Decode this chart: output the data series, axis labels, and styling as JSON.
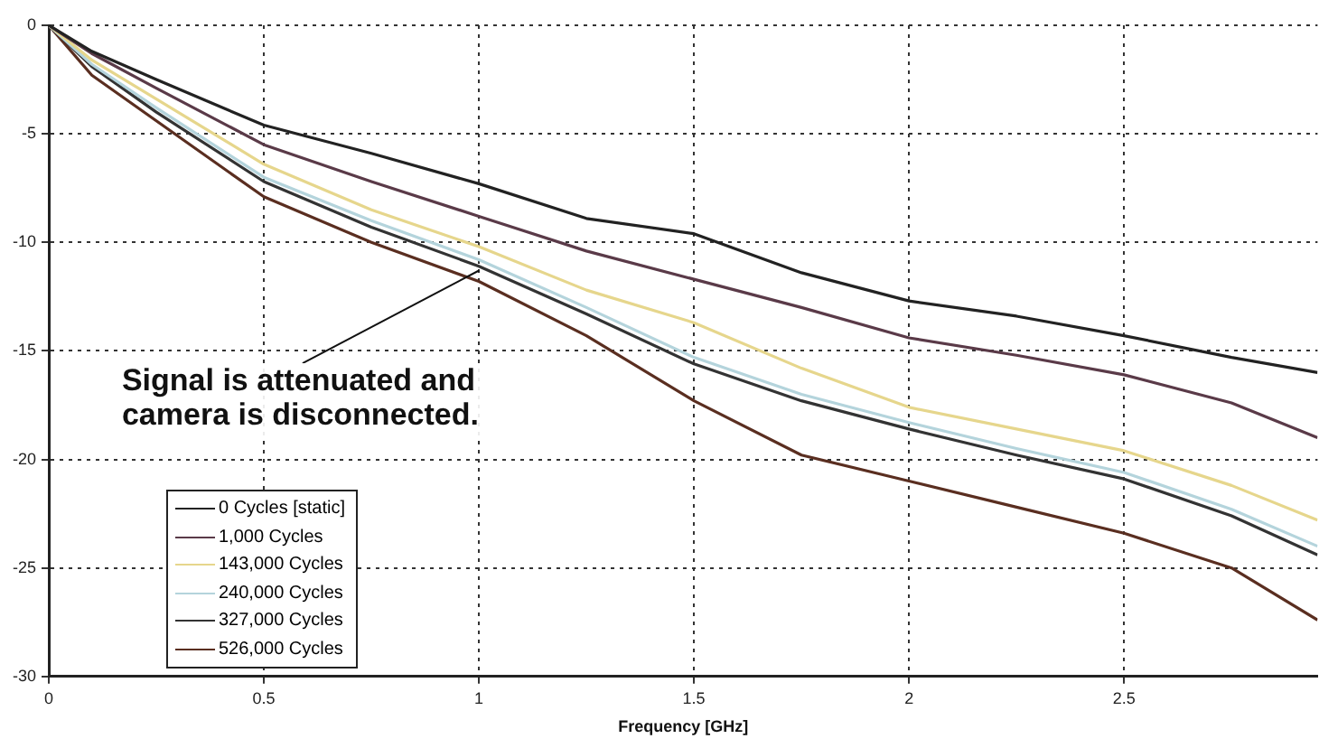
{
  "chart_data": {
    "type": "line",
    "xlabel": "Frequency [GHz]",
    "x": [
      0,
      0.1,
      0.25,
      0.5,
      0.75,
      1,
      1.25,
      1.5,
      1.75,
      2,
      2.25,
      2.5,
      2.75,
      2.95
    ],
    "series": [
      {
        "name": "0 Cycles [static]",
        "color": "#222222",
        "values": [
          0,
          -1.2,
          -2.5,
          -4.6,
          -5.9,
          -7.3,
          -8.9,
          -9.6,
          -11.4,
          -12.7,
          -13.4,
          -14.3,
          -15.3,
          -16.0
        ]
      },
      {
        "name": "1,000 Cycles",
        "color": "#5a3a48",
        "values": [
          0,
          -1.3,
          -2.9,
          -5.5,
          -7.2,
          -8.8,
          -10.4,
          -11.7,
          -13.0,
          -14.4,
          -15.2,
          -16.1,
          -17.4,
          -19.0
        ]
      },
      {
        "name": "143,000 Cycles",
        "color": "#e6d68c",
        "values": [
          0,
          -1.6,
          -3.4,
          -6.4,
          -8.5,
          -10.2,
          -12.2,
          -13.7,
          -15.8,
          -17.6,
          -18.6,
          -19.6,
          -21.2,
          -22.8
        ]
      },
      {
        "name": "240,000 Cycles",
        "color": "#b4d4dc",
        "values": [
          0,
          -1.8,
          -3.8,
          -7.0,
          -9.0,
          -10.8,
          -13.0,
          -15.3,
          -17.0,
          -18.3,
          -19.5,
          -20.6,
          -22.3,
          -24.0
        ]
      },
      {
        "name": "327,000 Cycles",
        "color": "#333333",
        "values": [
          0,
          -1.9,
          -4.0,
          -7.2,
          -9.3,
          -11.1,
          -13.3,
          -15.6,
          -17.3,
          -18.6,
          -19.8,
          -20.9,
          -22.6,
          -24.4
        ]
      },
      {
        "name": "526,000 Cycles",
        "color": "#5a2e20",
        "values": [
          0,
          -2.3,
          -4.4,
          -7.9,
          -10.0,
          -11.8,
          -14.3,
          -17.3,
          -19.8,
          -21.0,
          -22.2,
          -23.4,
          -25.0,
          -27.4
        ]
      }
    ],
    "xlim": [
      0,
      2.95
    ],
    "xticks": [
      0,
      0.5,
      1,
      1.5,
      2,
      2.5
    ],
    "ylim": [
      -30,
      0
    ],
    "yticks": [
      -30,
      -25,
      -20,
      -15,
      -10,
      -5,
      0
    ],
    "grid": true,
    "legend": "bottom left",
    "marker": "none",
    "line_style": "solid",
    "annotations": [
      {
        "text": "Signal is attenuated and\ncamera is disconnected.",
        "x": 1,
        "y": -11.3
      }
    ]
  }
}
